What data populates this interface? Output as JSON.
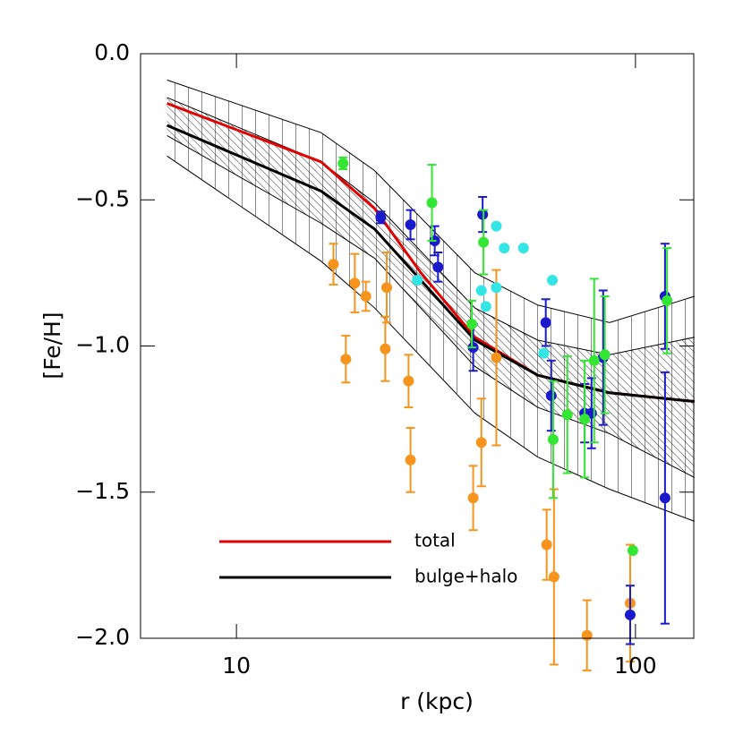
{
  "chart_data": {
    "type": "line",
    "xlabel": "r (kpc)",
    "ylabel": "[Fe/H]",
    "xscale": "log",
    "xlim": [
      5.75,
      140
    ],
    "ylim": [
      -2.0,
      0.0
    ],
    "xticks": [
      10,
      100
    ],
    "yticks": [
      {
        "value": 0.0,
        "label": "0.0"
      },
      {
        "value": -0.5,
        "label": "−0.5"
      },
      {
        "value": -1.0,
        "label": "−1.0"
      },
      {
        "value": -1.5,
        "label": "−1.5"
      },
      {
        "value": -2.0,
        "label": "−2.0"
      }
    ],
    "legend": "lower left",
    "bands": [
      {
        "hatch": "vertical",
        "color": "#000000",
        "x": [
          6.7,
          16.3,
          22.2,
          39.6,
          56.9,
          86.1,
          140.6
        ],
        "upper": [
          -0.09,
          -0.27,
          -0.4,
          -0.75,
          -0.86,
          -0.92,
          -0.83
        ],
        "lower": [
          -0.35,
          -0.71,
          -0.87,
          -1.23,
          -1.38,
          -1.49,
          -1.6
        ]
      },
      {
        "hatch": "diagonal",
        "color": "#000000",
        "x": [
          6.7,
          16.3,
          22.2,
          39.6,
          56.9,
          86.1,
          140.6
        ],
        "upper": [
          -0.15,
          -0.37,
          -0.51,
          -0.87,
          -0.98,
          -1.03,
          -0.97
        ],
        "lower": [
          -0.28,
          -0.58,
          -0.7,
          -1.07,
          -1.21,
          -1.3,
          -1.45
        ]
      }
    ],
    "points": [
      {
        "color": "#f7941d",
        "x": [
          17.5,
          18.8,
          19.8,
          21.1,
          23.8,
          23.6,
          27.0,
          27.3,
          39.2,
          41.1,
          44.8,
          59.9,
          62.5,
          75.6,
          97.0
        ],
        "values": [
          -0.72,
          -1.045,
          -0.785,
          -0.83,
          -0.8,
          -1.01,
          -1.12,
          -1.39,
          -1.52,
          -1.33,
          -1.04,
          -1.68,
          -1.79,
          -1.99,
          -1.88
        ],
        "errors": [
          0.07,
          0.08,
          0.1,
          0.05,
          0.12,
          0.11,
          0.09,
          0.11,
          0.11,
          0.15,
          0.3,
          0.12,
          0.3,
          0.12,
          0.2
        ]
      },
      {
        "color": "#1a1acc",
        "x": [
          23.0,
          27.3,
          31.4,
          32.0,
          39.2,
          41.4,
          59.6,
          61.5,
          74.6,
          77.6,
          83.0,
          97.0,
          118.6,
          118.6
        ],
        "values": [
          -0.56,
          -0.585,
          -0.64,
          -0.73,
          -1.005,
          -0.55,
          -0.92,
          -1.17,
          -1.23,
          -1.23,
          -1.04,
          -1.92,
          -1.52,
          -0.83
        ],
        "errors": [
          0.02,
          0.05,
          0.05,
          0.05,
          0.08,
          0.06,
          0.08,
          0.12,
          0.1,
          0.12,
          0.23,
          0.1,
          0.43,
          0.18
        ]
      },
      {
        "color": "#33e633",
        "x": [
          18.5,
          30.9,
          38.9,
          41.6,
          62.2,
          67.5,
          74.6,
          78.8,
          83.8,
          98.5,
          120.0
        ],
        "values": [
          -0.375,
          -0.51,
          -0.925,
          -0.645,
          -1.32,
          -1.235,
          -1.25,
          -1.05,
          -1.03,
          -1.7,
          -0.845
        ],
        "errors": [
          0.02,
          0.13,
          0.08,
          0.11,
          0.2,
          0.2,
          0.2,
          0.28,
          0.2,
          0.0,
          0.18
        ]
      },
      {
        "color": "#33e6e6",
        "x": [
          28.4,
          41.1,
          42.2,
          44.8,
          44.8,
          46.9,
          52.4,
          58.9,
          61.9
        ],
        "values": [
          -0.775,
          -0.81,
          -0.865,
          -0.59,
          -0.8,
          -0.665,
          -0.665,
          -1.025,
          -0.775
        ]
      }
    ],
    "series": [
      {
        "name": "total",
        "color": "#e00000",
        "x": [
          6.7,
          16.3,
          22.2,
          29.0,
          39.6,
          56.9,
          86.1,
          140.6
        ],
        "values": [
          -0.17,
          -0.37,
          -0.53,
          -0.75,
          -0.97,
          -1.1,
          -1.16,
          -1.19
        ]
      },
      {
        "name": "bulge+halo",
        "color": "#000000",
        "x": [
          6.7,
          16.3,
          22.2,
          39.6,
          56.9,
          86.1,
          140.6
        ],
        "values": [
          -0.245,
          -0.47,
          -0.6,
          -0.98,
          -1.1,
          -1.16,
          -1.19
        ]
      }
    ]
  }
}
